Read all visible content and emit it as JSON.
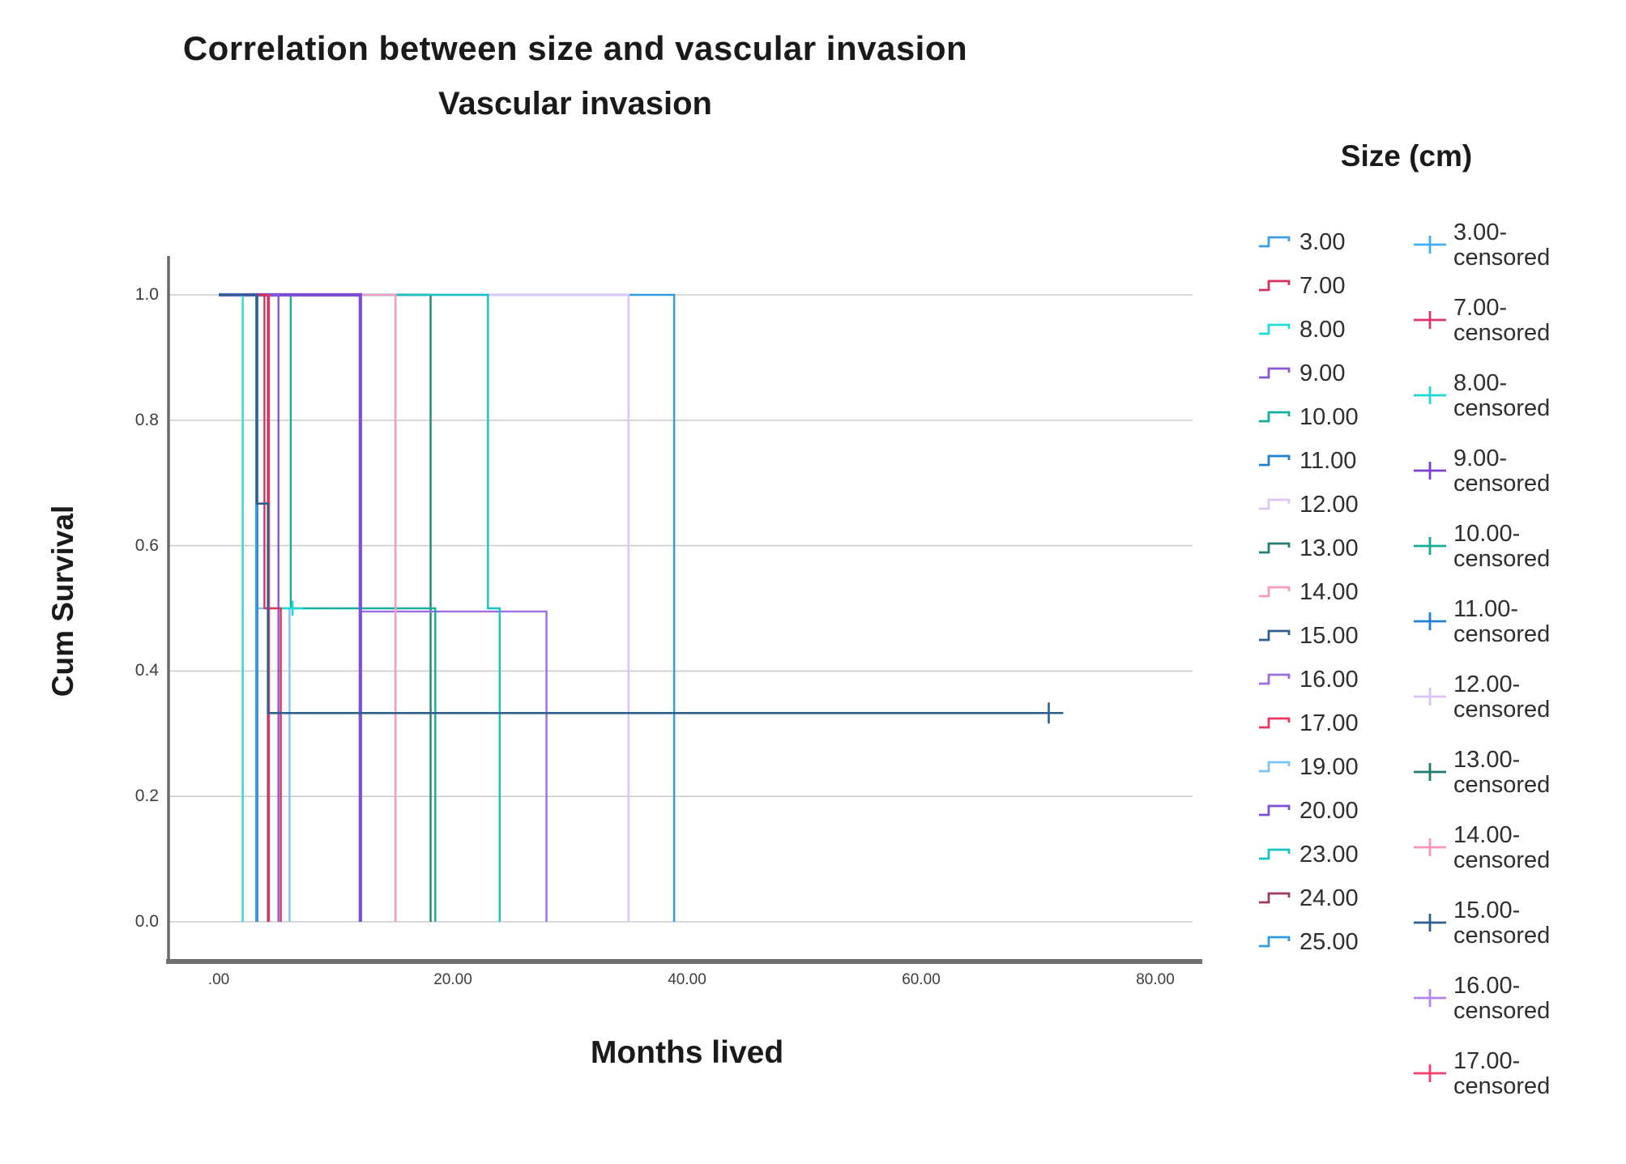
{
  "titles": {
    "main": "Correlation between size and vascular invasion",
    "sub": "Vascular invasion"
  },
  "axes": {
    "y_label": "Cum Survival",
    "x_label": "Months lived",
    "y_ticks": [
      {
        "label": "1.0",
        "s": 1.0
      },
      {
        "label": "0.8",
        "s": 0.8
      },
      {
        "label": "0.6",
        "s": 0.6
      },
      {
        "label": "0.4",
        "s": 0.4
      },
      {
        "label": "0.2",
        "s": 0.2
      },
      {
        "label": "0.0",
        "s": 0.0
      }
    ],
    "x_ticks": [
      {
        "label": ".00",
        "m": 0
      },
      {
        "label": "20.00",
        "m": 20
      },
      {
        "label": "40.00",
        "m": 40
      },
      {
        "label": "60.00",
        "m": 60
      },
      {
        "label": "80.00",
        "m": 80
      }
    ]
  },
  "legend": {
    "title": "Size (cm)",
    "lines": [
      {
        "label": "3.00",
        "color": "#3a9ee8"
      },
      {
        "label": "7.00",
        "color": "#d63360"
      },
      {
        "label": "8.00",
        "color": "#22dcd8"
      },
      {
        "label": "9.00",
        "color": "#8a55d6"
      },
      {
        "label": "10.00",
        "color": "#14ad9e"
      },
      {
        "label": "11.00",
        "color": "#1f7fd4"
      },
      {
        "label": "12.00",
        "color": "#dcc6f5"
      },
      {
        "label": "13.00",
        "color": "#237f72"
      },
      {
        "label": "14.00",
        "color": "#f79cc0"
      },
      {
        "label": "15.00",
        "color": "#2d5f8e"
      },
      {
        "label": "16.00",
        "color": "#9d6ee3"
      },
      {
        "label": "17.00",
        "color": "#ee3560"
      },
      {
        "label": "19.00",
        "color": "#7ac4f2"
      },
      {
        "label": "20.00",
        "color": "#7b4fd6"
      },
      {
        "label": "23.00",
        "color": "#16c2c2"
      },
      {
        "label": "24.00",
        "color": "#a03a5c"
      },
      {
        "label": "25.00",
        "color": "#2d9ce0"
      }
    ],
    "censored": [
      {
        "label": "3.00-",
        "sub": "censored",
        "color": "#42aef5"
      },
      {
        "label": "7.00-",
        "sub": "censored",
        "color": "#e0346a"
      },
      {
        "label": "8.00-",
        "sub": "censored",
        "color": "#1ed9cf"
      },
      {
        "label": "9.00-",
        "sub": "censored",
        "color": "#7a42cc"
      },
      {
        "label": "10.00-",
        "sub": "censored",
        "color": "#12ab96"
      },
      {
        "label": "11.00-",
        "sub": "censored",
        "color": "#1f7fd4"
      },
      {
        "label": "12.00-",
        "sub": "censored",
        "color": "#dcc2f7"
      },
      {
        "label": "13.00-",
        "sub": "censored",
        "color": "#1d7a6e"
      },
      {
        "label": "14.00-",
        "sub": "censored",
        "color": "#f895bc"
      },
      {
        "label": "15.00-",
        "sub": "censored",
        "color": "#2d5f8e"
      },
      {
        "label": "16.00-",
        "sub": "censored",
        "color": "#b384f0"
      },
      {
        "label": "17.00-",
        "sub": "censored",
        "color": "#f73e6e"
      }
    ]
  },
  "chart_data": {
    "type": "line",
    "subtype": "kaplan-meier-step",
    "title": "Correlation between size and vascular invasion",
    "xlabel": "Months lived",
    "ylabel": "Cum Survival",
    "xlim": [
      0,
      83
    ],
    "ylim": [
      0,
      1.05
    ],
    "grid": "horizontal",
    "legend_position": "right",
    "x_unit": "months",
    "series": [
      {
        "name": "25.00",
        "color": "#2d9ce0",
        "width": 2.4,
        "points": [
          [
            0,
            1
          ],
          [
            38.9,
            1
          ],
          [
            38.9,
            0
          ]
        ]
      },
      {
        "name": "12.00",
        "color": "#dcc6f5",
        "width": 2.6,
        "points": [
          [
            0,
            1
          ],
          [
            35,
            1
          ],
          [
            35,
            0
          ]
        ]
      },
      {
        "name": "13.00",
        "color": "#237f72",
        "width": 2.4,
        "points": [
          [
            0,
            1
          ],
          [
            18.1,
            1
          ],
          [
            18.1,
            0
          ]
        ]
      },
      {
        "name": "16.00",
        "color": "#9d6ee3",
        "width": 2.4,
        "points": [
          [
            0,
            1
          ],
          [
            12.1,
            1
          ],
          [
            12.1,
            0.495
          ],
          [
            28,
            0.495
          ],
          [
            28,
            0
          ]
        ]
      },
      {
        "name": "23.00",
        "color": "#16c2c2",
        "width": 2.4,
        "points": [
          [
            0,
            1
          ],
          [
            23,
            1
          ],
          [
            23,
            0.5
          ],
          [
            24,
            0.5
          ],
          [
            24,
            0
          ]
        ]
      },
      {
        "name": "10.00",
        "color": "#14ad9e",
        "width": 2.4,
        "points": [
          [
            0,
            1
          ],
          [
            6.15,
            1
          ],
          [
            6.15,
            0.5
          ],
          [
            18.5,
            0.5
          ],
          [
            18.5,
            0
          ]
        ]
      },
      {
        "name": "14.00",
        "color": "#f79cc0",
        "width": 2.6,
        "points": [
          [
            0,
            1
          ],
          [
            15.1,
            1
          ],
          [
            15.1,
            0
          ]
        ]
      },
      {
        "name": "20.00",
        "color": "#7b4fd6",
        "width": 4.2,
        "points": [
          [
            0,
            1
          ],
          [
            12.1,
            1
          ],
          [
            12.1,
            0
          ]
        ]
      },
      {
        "name": "19.00",
        "color": "#7ac4f2",
        "width": 2.4,
        "points": [
          [
            0,
            1
          ],
          [
            3.3,
            1
          ],
          [
            3.3,
            0.5
          ],
          [
            6.05,
            0.5
          ],
          [
            6.05,
            0
          ]
        ]
      },
      {
        "name": "9.00",
        "color": "#8a55d6",
        "width": 2.4,
        "points": [
          [
            0,
            1
          ],
          [
            5.1,
            1
          ],
          [
            5.1,
            0
          ]
        ]
      },
      {
        "name": "24.00",
        "color": "#a03a5c",
        "width": 2.4,
        "points": [
          [
            0,
            1
          ],
          [
            4.2,
            1
          ],
          [
            4.2,
            0
          ]
        ]
      },
      {
        "name": "17.00",
        "color": "#ee3560",
        "width": 2.2,
        "points": [
          [
            0,
            1
          ],
          [
            4.3,
            1
          ],
          [
            4.3,
            0
          ]
        ]
      },
      {
        "name": "7.00",
        "color": "#d63360",
        "width": 2.4,
        "points": [
          [
            0,
            1
          ],
          [
            3.9,
            1
          ],
          [
            3.9,
            0.5
          ],
          [
            5.3,
            0.5
          ],
          [
            5.3,
            0
          ]
        ]
      },
      {
        "name": "11.00",
        "color": "#1f7fd4",
        "width": 2.2,
        "points": [
          [
            0,
            1
          ],
          [
            3.3,
            1
          ],
          [
            3.3,
            0
          ]
        ]
      },
      {
        "name": "3.00",
        "color": "#3a9ee8",
        "width": 2.4,
        "points": [
          [
            0,
            1
          ],
          [
            3.2,
            1
          ],
          [
            3.2,
            0
          ]
        ]
      },
      {
        "name": "8.00",
        "color": "#22dcd8",
        "width": 2.4,
        "points": [
          [
            0,
            1
          ],
          [
            2.05,
            1
          ],
          [
            2.05,
            0
          ]
        ]
      },
      {
        "name": "15.00",
        "color": "#2d5f8e",
        "width": 2.6,
        "points": [
          [
            0,
            1
          ],
          [
            3.25,
            1
          ],
          [
            3.25,
            0.667
          ],
          [
            4.2,
            0.667
          ],
          [
            4.2,
            0.333
          ],
          [
            70.9,
            0.333
          ]
        ]
      }
    ],
    "censored_marks": [
      {
        "name": "8.00-censored",
        "m": 6.3,
        "s": 0.5,
        "color": "#1ed9cf",
        "size": 13
      },
      {
        "name": "15.00-censored",
        "m": 70.9,
        "s": 0.333,
        "color": "#2d5f8e",
        "size": 18
      }
    ]
  }
}
